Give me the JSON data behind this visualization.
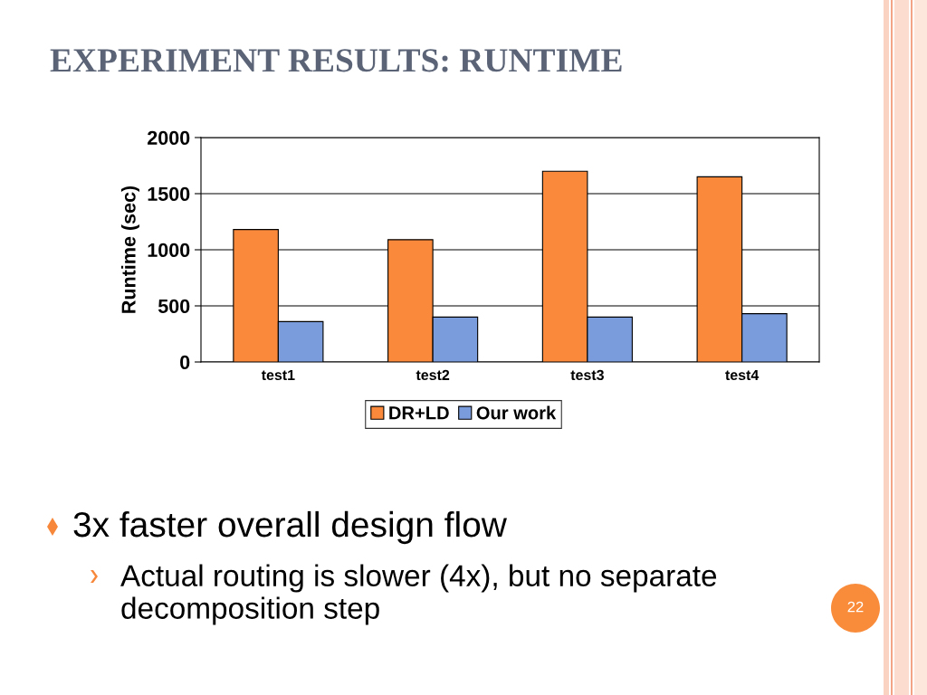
{
  "chart_data": {
    "type": "bar",
    "title": "EXPERIMENT RESULTS: RUNTIME",
    "ylabel": "Runtime (sec)",
    "categories": [
      "test1",
      "test2",
      "test3",
      "test4"
    ],
    "series": [
      {
        "name": "DR+LD",
        "color": "#fa893b",
        "values": [
          1180,
          1090,
          1700,
          1650
        ]
      },
      {
        "name": "Our work",
        "color": "#7a9bdc",
        "values": [
          360,
          400,
          400,
          430
        ]
      }
    ],
    "ylim": [
      0,
      2000
    ],
    "yticks": [
      0,
      500,
      1000,
      1500,
      2000
    ],
    "grid": "y",
    "legend": "bottom",
    "annotations": [
      "3x faster overall design flow",
      "Actual routing is slower (4x), but no separate\ndecomposition step",
      "22"
    ]
  }
}
